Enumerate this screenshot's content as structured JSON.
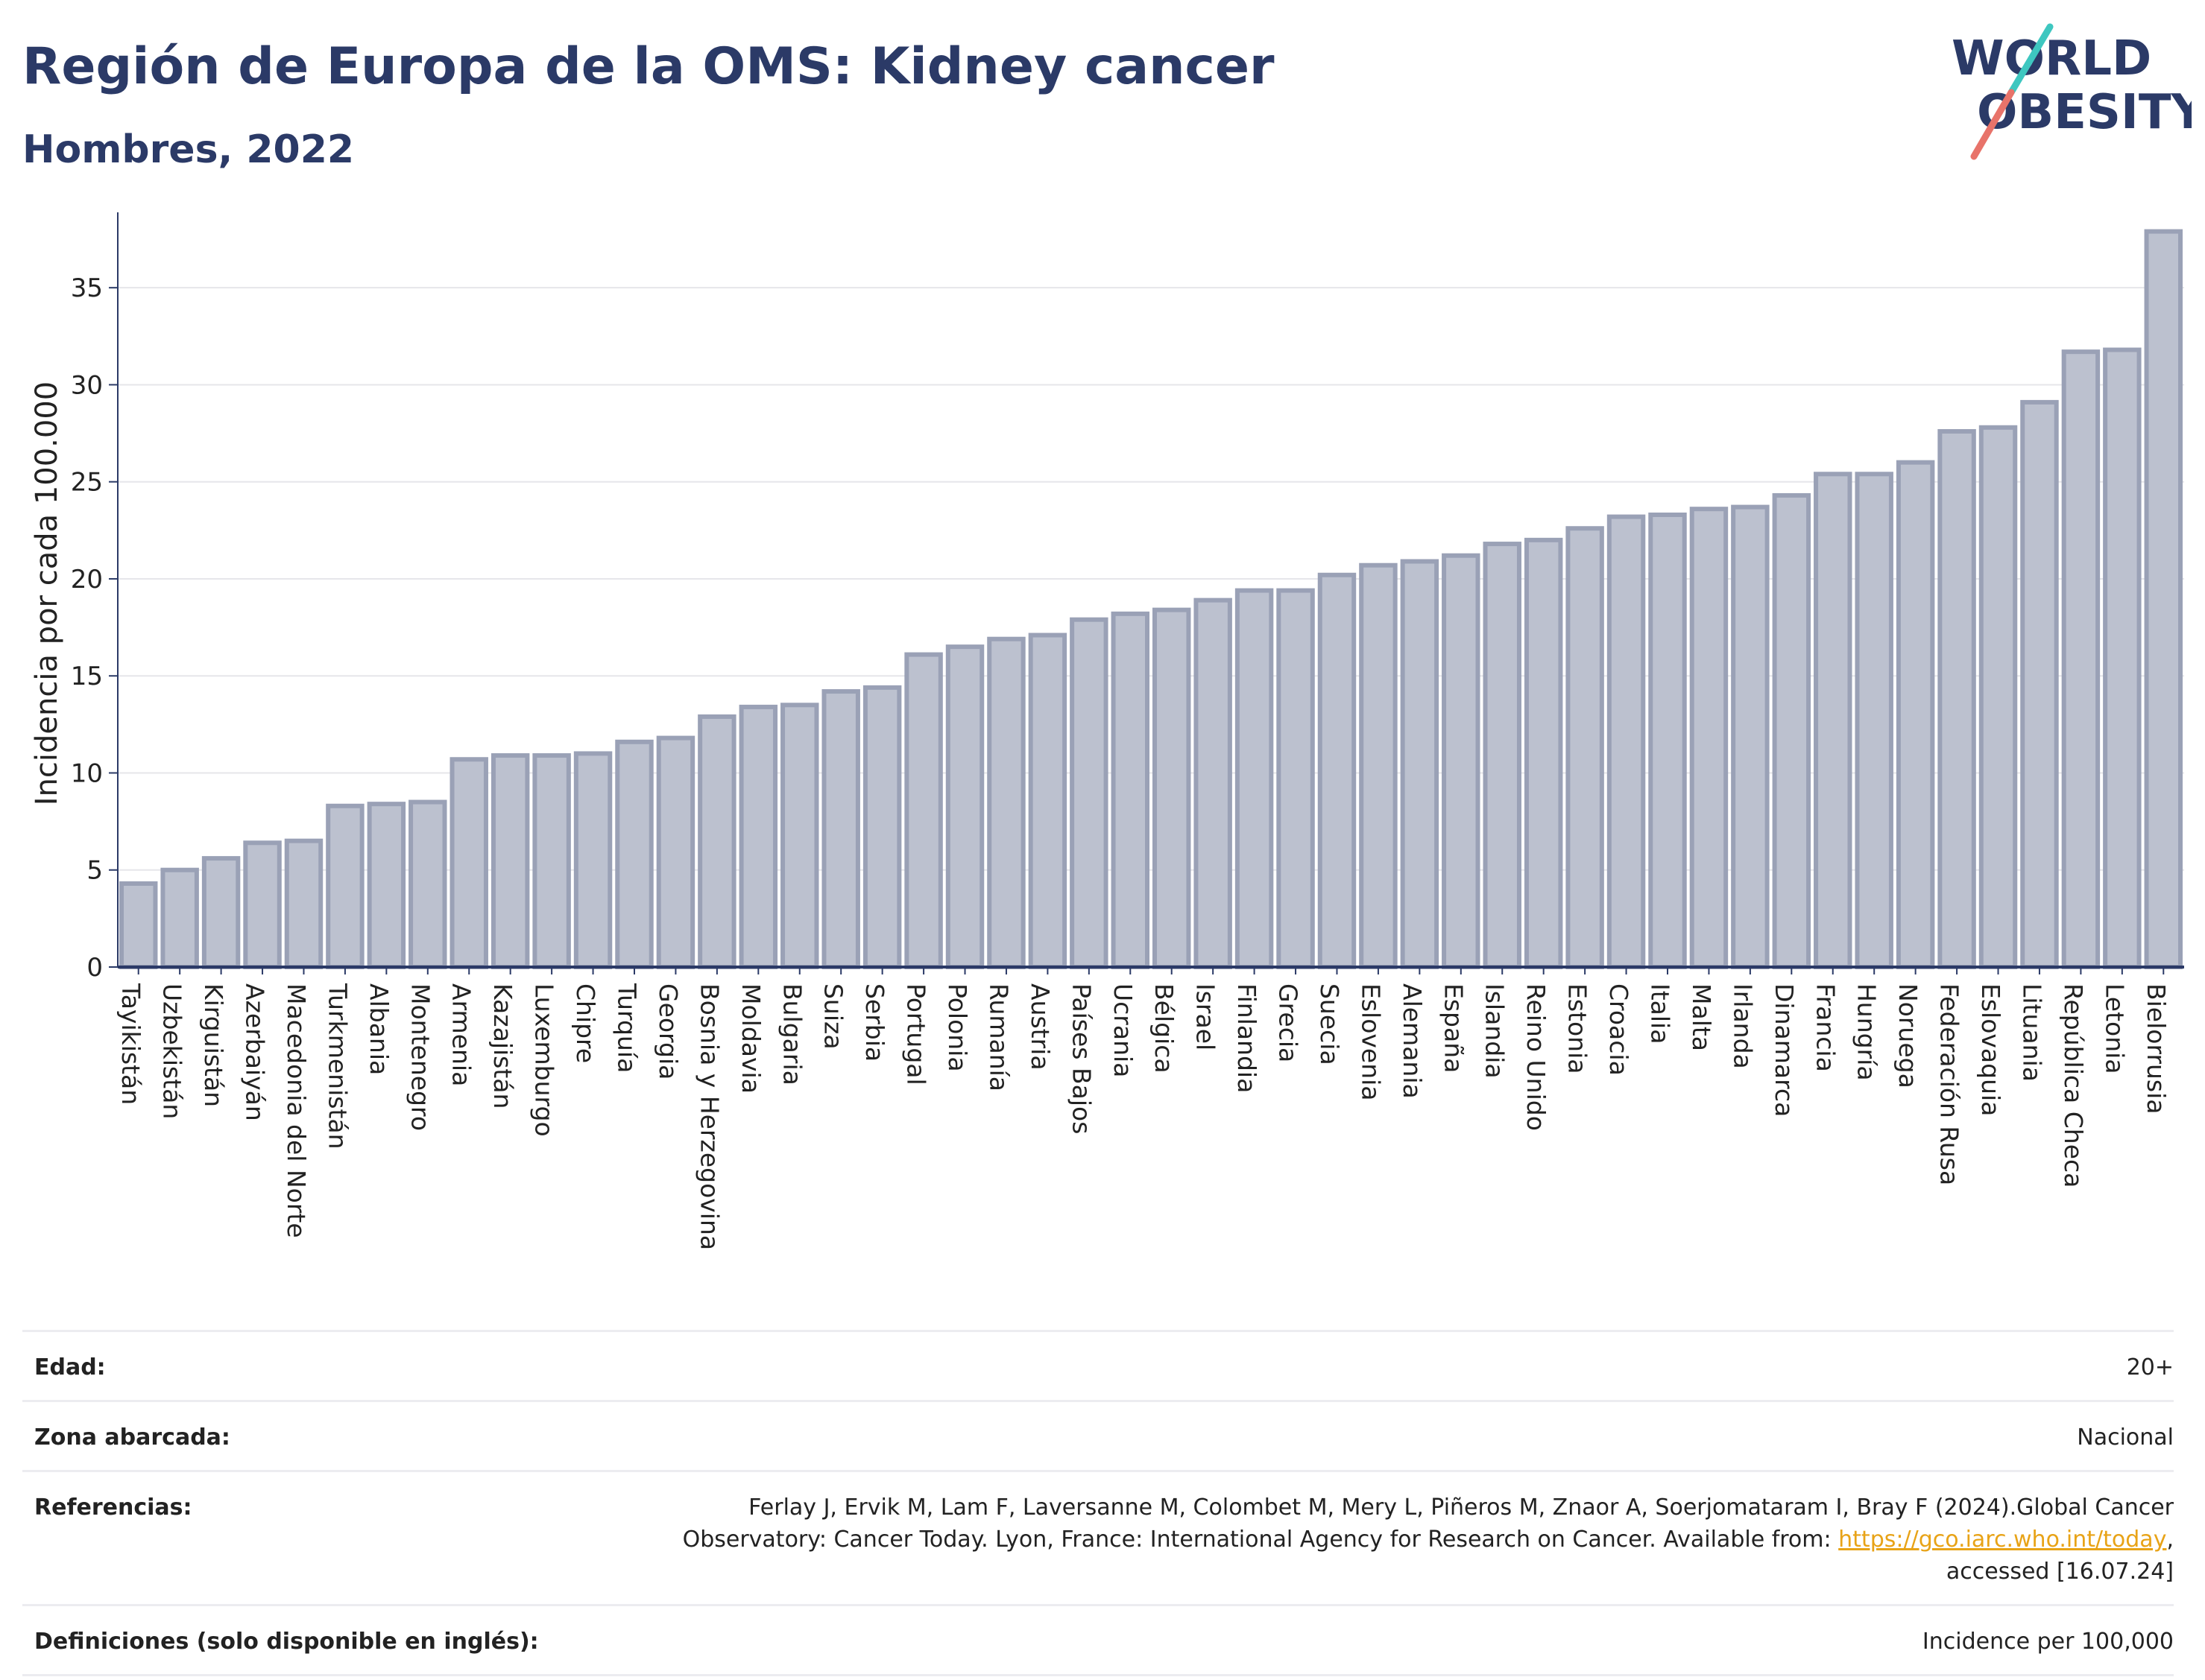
{
  "header": {
    "title": "Región de Europa de la OMS: Kidney cancer",
    "subtitle": "Hombres, 2022"
  },
  "logo": {
    "line1": "WORLD",
    "line2": "OBESITY",
    "colors": {
      "text": "#2b3a67",
      "slash_teal": "#3ec7c0",
      "slash_coral": "#e8736a"
    }
  },
  "colors": {
    "bar_fill": "#bcc1cf",
    "bar_stroke": "#9aa1b6",
    "axis": "#2b3a67",
    "grid": "#e6e6ea",
    "text": "#222222"
  },
  "chart_data": {
    "type": "bar",
    "title": "Región de Europa de la OMS: Kidney cancer",
    "subtitle": "Hombres, 2022",
    "xlabel": "",
    "ylabel": "Incidencia por cada 100.000",
    "ylim": [
      0,
      38.5
    ],
    "yticks": [
      0,
      5,
      10,
      15,
      20,
      25,
      30,
      35
    ],
    "grid": true,
    "categories": [
      "Tayikistán",
      "Uzbekistán",
      "Kirguistán",
      "Azerbaiyán",
      "Macedonia del Norte",
      "Turkmenistán",
      "Albania",
      "Montenegro",
      "Armenia",
      "Kazajistán",
      "Luxemburgo",
      "Chipre",
      "Turquía",
      "Georgia",
      "Bosnia y Herzegovina",
      "Moldavia",
      "Bulgaria",
      "Suiza",
      "Serbia",
      "Portugal",
      "Polonia",
      "Rumanía",
      "Austria",
      "Países Bajos",
      "Ucrania",
      "Bélgica",
      "Israel",
      "Finlandia",
      "Grecia",
      "Suecia",
      "Eslovenia",
      "Alemania",
      "España",
      "Islandia",
      "Reino Unido",
      "Estonia",
      "Croacia",
      "Italia",
      "Malta",
      "Irlanda",
      "Dinamarca",
      "Francia",
      "Hungría",
      "Noruega",
      "Federación Rusa",
      "Eslovaquia",
      "Lituania",
      "República Checa",
      "Letonia",
      "Bielorrusia"
    ],
    "values": [
      4.3,
      5.0,
      5.6,
      6.4,
      6.5,
      8.3,
      8.4,
      8.5,
      10.7,
      10.9,
      10.9,
      11.0,
      11.6,
      11.8,
      12.9,
      13.4,
      13.5,
      14.2,
      14.4,
      16.1,
      16.5,
      16.9,
      17.1,
      17.9,
      18.2,
      18.4,
      18.9,
      19.4,
      19.4,
      20.2,
      20.7,
      20.9,
      21.2,
      21.8,
      22.0,
      22.6,
      23.2,
      23.3,
      23.6,
      23.7,
      24.3,
      25.4,
      25.4,
      26.0,
      27.6,
      27.8,
      29.1,
      31.7,
      31.8,
      37.9
    ]
  },
  "meta": {
    "age_label": "Edad:",
    "age_value": "20+",
    "coverage_label": "Zona abarcada:",
    "coverage_value": "Nacional",
    "references_label": "Referencias:",
    "references_line1": "Ferlay J, Ervik M, Lam F, Laversanne M, Colombet M, Mery L, Piñeros M, Znaor A, Soerjomataram I, Bray F (2024).Global Cancer",
    "references_line2": "Observatory: Cancer Today. Lyon, France: International Agency for Research on Cancer. Available from: ",
    "references_link": "https://gco.iarc.who.int/today",
    "references_line2_end": ",",
    "references_line3": "accessed [16.07.24]",
    "definitions_label": "Definiciones (solo disponible en inglés):",
    "definitions_value": "Incidence per 100,000"
  }
}
